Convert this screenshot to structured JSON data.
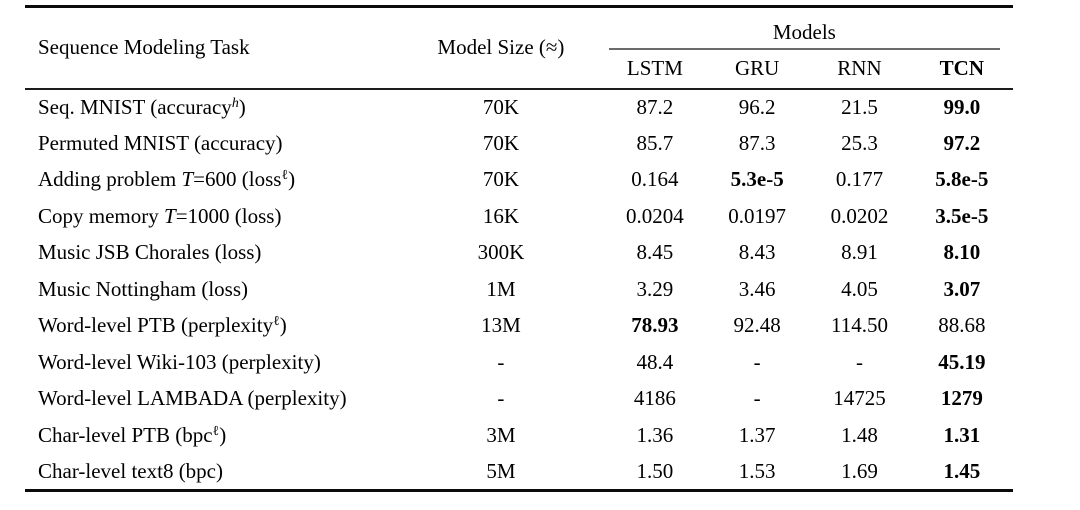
{
  "table": {
    "header": {
      "task_label": "Sequence Modeling Task",
      "size_label": "Model Size (≈)",
      "models_group_label": "Models",
      "model_columns": [
        {
          "label": "LSTM",
          "bold": false
        },
        {
          "label": "GRU",
          "bold": false
        },
        {
          "label": "RNN",
          "bold": false
        },
        {
          "label": "TCN",
          "bold": true
        }
      ]
    },
    "rows": [
      {
        "task_segments": [
          {
            "t": "Seq. MNIST (accuracy"
          },
          {
            "t": "h",
            "s": "sup-italic"
          },
          {
            "t": ")"
          }
        ],
        "model_size": "70K",
        "values": [
          {
            "v": "87.2"
          },
          {
            "v": "96.2"
          },
          {
            "v": "21.5"
          },
          {
            "v": "99.0",
            "bold": true
          }
        ]
      },
      {
        "task_segments": [
          {
            "t": "Permuted MNIST (accuracy)"
          }
        ],
        "model_size": "70K",
        "values": [
          {
            "v": "85.7"
          },
          {
            "v": "87.3"
          },
          {
            "v": "25.3"
          },
          {
            "v": "97.2",
            "bold": true
          }
        ]
      },
      {
        "task_segments": [
          {
            "t": "Adding problem "
          },
          {
            "t": "T",
            "s": "italic"
          },
          {
            "t": "=600 (loss"
          },
          {
            "t": "ℓ",
            "s": "sup"
          },
          {
            "t": ")"
          }
        ],
        "model_size": "70K",
        "values": [
          {
            "v": "0.164"
          },
          {
            "v": "5.3e-5",
            "bold": true
          },
          {
            "v": "0.177"
          },
          {
            "v": "5.8e-5",
            "bold": true
          }
        ]
      },
      {
        "task_segments": [
          {
            "t": "Copy memory "
          },
          {
            "t": "T",
            "s": "italic"
          },
          {
            "t": "=1000 (loss)"
          }
        ],
        "model_size": "16K",
        "values": [
          {
            "v": "0.0204"
          },
          {
            "v": "0.0197"
          },
          {
            "v": "0.0202"
          },
          {
            "v": "3.5e-5",
            "bold": true
          }
        ]
      },
      {
        "task_segments": [
          {
            "t": "Music JSB Chorales (loss)"
          }
        ],
        "model_size": "300K",
        "values": [
          {
            "v": "8.45"
          },
          {
            "v": "8.43"
          },
          {
            "v": "8.91"
          },
          {
            "v": "8.10",
            "bold": true
          }
        ]
      },
      {
        "task_segments": [
          {
            "t": "Music Nottingham (loss)"
          }
        ],
        "model_size": "1M",
        "values": [
          {
            "v": "3.29"
          },
          {
            "v": "3.46"
          },
          {
            "v": "4.05"
          },
          {
            "v": "3.07",
            "bold": true
          }
        ]
      },
      {
        "task_segments": [
          {
            "t": "Word-level PTB (perplexity"
          },
          {
            "t": "ℓ",
            "s": "sup"
          },
          {
            "t": ")"
          }
        ],
        "model_size": "13M",
        "values": [
          {
            "v": "78.93",
            "bold": true
          },
          {
            "v": "92.48"
          },
          {
            "v": "114.50"
          },
          {
            "v": "88.68"
          }
        ]
      },
      {
        "task_segments": [
          {
            "t": "Word-level Wiki-103 (perplexity)"
          }
        ],
        "model_size": "-",
        "values": [
          {
            "v": "48.4"
          },
          {
            "v": "-"
          },
          {
            "v": "-"
          },
          {
            "v": "45.19",
            "bold": true
          }
        ]
      },
      {
        "task_segments": [
          {
            "t": "Word-level LAMBADA (perplexity)"
          }
        ],
        "model_size": "-",
        "values": [
          {
            "v": "4186"
          },
          {
            "v": "-"
          },
          {
            "v": "14725"
          },
          {
            "v": "1279",
            "bold": true
          }
        ]
      },
      {
        "task_segments": [
          {
            "t": "Char-level PTB (bpc"
          },
          {
            "t": "ℓ",
            "s": "sup"
          },
          {
            "t": ")"
          }
        ],
        "model_size": "3M",
        "values": [
          {
            "v": "1.36"
          },
          {
            "v": "1.37"
          },
          {
            "v": "1.48"
          },
          {
            "v": "1.31",
            "bold": true
          }
        ]
      },
      {
        "task_segments": [
          {
            "t": "Char-level text8 (bpc)"
          }
        ],
        "model_size": "5M",
        "values": [
          {
            "v": "1.50"
          },
          {
            "v": "1.53"
          },
          {
            "v": "1.69"
          },
          {
            "v": "1.45",
            "bold": true
          }
        ]
      }
    ]
  }
}
